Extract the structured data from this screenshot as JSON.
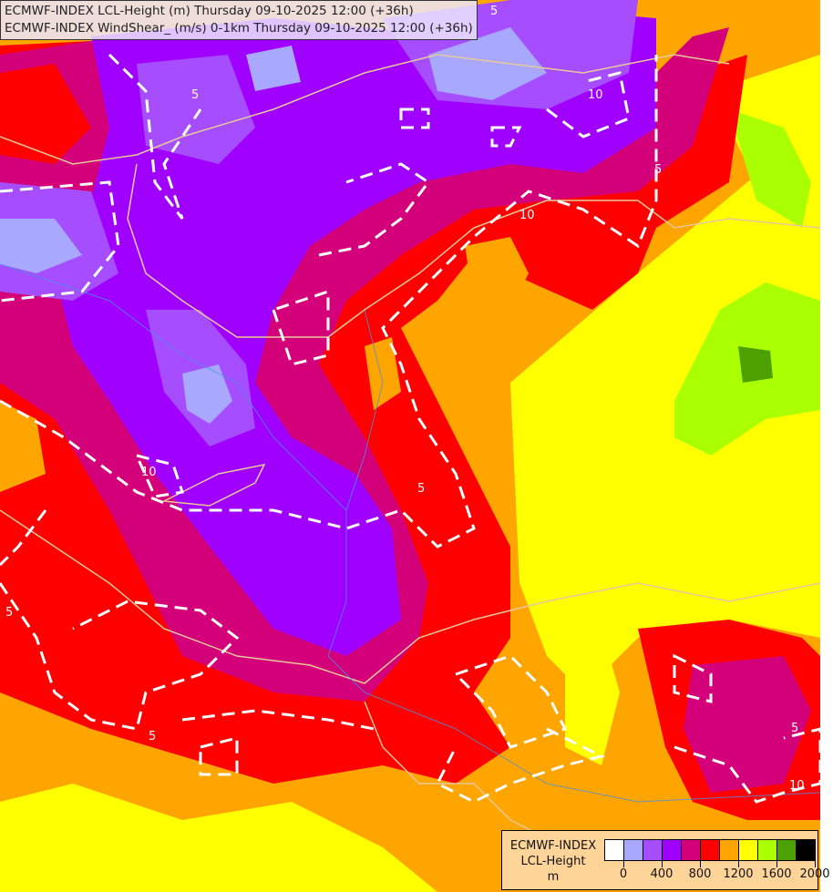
{
  "title": {
    "line1": "ECMWF-INDEX LCL-Height (m) Thursday 09-10-2025 12:00 (+36h)",
    "line2": "ECMWF-INDEX WindShear_ (m/s) 0-1km Thursday 09-10-2025 12:00 (+36h)"
  },
  "legend": {
    "line1": "ECMWF-INDEX",
    "line2": "LCL-Height",
    "line3": "m",
    "colors": [
      "#ffffff",
      "#a8a8ff",
      "#a64dff",
      "#a000ff",
      "#d4007a",
      "#ff0000",
      "#ffa500",
      "#ffff00",
      "#aaff00",
      "#4ca000",
      "#000000"
    ],
    "ticks": [
      "0",
      "400",
      "800",
      "1200",
      "1600",
      "2000"
    ]
  },
  "contour_labels": [
    "5",
    "5",
    "10",
    "10",
    "5",
    "5",
    "5",
    "5",
    "10",
    "5",
    "10"
  ],
  "contour_style": {
    "color": "#ffffff",
    "dash": "dashed"
  }
}
